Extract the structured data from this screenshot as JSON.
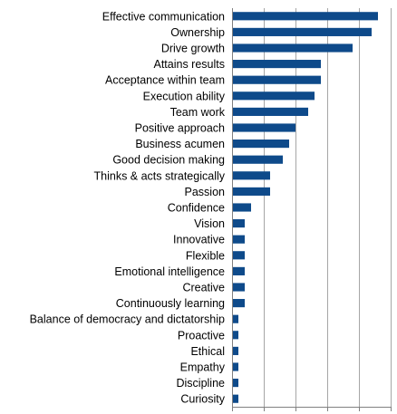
{
  "chart_data": {
    "type": "bar",
    "orientation": "horizontal",
    "categories": [
      "Effective communication",
      "Ownership",
      "Drive growth",
      "Attains results",
      "Acceptance within team",
      "Execution ability",
      "Team work",
      "Positive approach",
      "Business acumen",
      "Good decision making",
      "Thinks & acts strategically",
      "Passion",
      "Confidence",
      "Vision",
      "Innovative",
      "Flexible",
      "Emotional intelligence",
      "Creative",
      "Continuously learning",
      "Balance of democracy and dictatorship",
      "Proactive",
      "Ethical",
      "Empathy",
      "Discipline",
      "Curiosity"
    ],
    "values": [
      23,
      22,
      19,
      14,
      14,
      13,
      12,
      10,
      9,
      8,
      6,
      6,
      3,
      2,
      2,
      2,
      2,
      2,
      2,
      1,
      1,
      1,
      1,
      1,
      1
    ],
    "xlim": [
      0,
      25
    ],
    "x_grid_step": 5,
    "grid": true,
    "tick_labels_shown": false,
    "bar_color": "#0e4a8a",
    "grid_color": "#a6a6a6",
    "axis_color": "#808080"
  }
}
